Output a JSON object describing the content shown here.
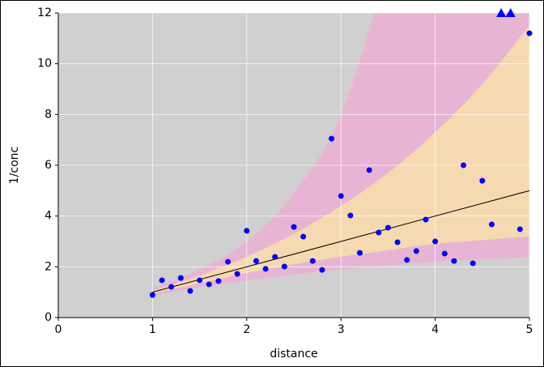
{
  "chart_data": {
    "type": "scatter",
    "x_label": "distance",
    "y_label": "1/conc",
    "xlim": [
      0,
      5
    ],
    "ylim": [
      0,
      12
    ],
    "xticks": [
      0,
      1,
      2,
      3,
      4,
      5
    ],
    "yticks": [
      0,
      2,
      4,
      6,
      8,
      10,
      12
    ],
    "grid": true,
    "background": "#d0d0d0",
    "series": [
      {
        "color": "#0000ff",
        "x": [
          1.0,
          1.1,
          1.2,
          1.3,
          1.4,
          1.5,
          1.6,
          1.7,
          1.8,
          1.9,
          2.0,
          2.1,
          2.2,
          2.3,
          2.4,
          2.5,
          2.6,
          2.7,
          2.8,
          2.9,
          3.0,
          3.1,
          3.2,
          3.3,
          3.4,
          3.5,
          3.6,
          3.7,
          3.8,
          3.9,
          4.0,
          4.1,
          4.2,
          4.3,
          4.4,
          4.5,
          4.6,
          4.9,
          5.0
        ],
        "values": [
          0.89,
          1.47,
          1.21,
          1.56,
          1.05,
          1.47,
          1.31,
          1.44,
          2.2,
          1.72,
          3.42,
          2.23,
          1.92,
          2.39,
          2.01,
          3.57,
          3.19,
          2.23,
          1.88,
          7.05,
          4.79,
          4.02,
          2.55,
          5.81,
          3.35,
          3.54,
          2.97,
          2.27,
          2.62,
          3.86,
          3.0,
          2.52,
          2.23,
          6.0,
          2.14,
          5.39,
          3.67,
          3.48,
          11.2
        ]
      }
    ],
    "clipped": {
      "color": "#0000ff",
      "x": [
        4.7,
        4.8
      ]
    },
    "fit": {
      "color": "#000000",
      "x": [
        1,
        5
      ],
      "values": [
        1,
        5
      ]
    },
    "bands": [
      {
        "color": "#e8b4d4",
        "x": [
          1,
          1.5,
          2,
          2.5,
          3,
          3.5,
          4,
          4.5,
          5
        ],
        "upper": [
          1.15,
          1.9,
          3.0,
          4.9,
          8.0,
          14,
          22,
          35,
          60
        ],
        "lower": [
          0.85,
          1.2,
          1.45,
          1.7,
          1.9,
          2.05,
          2.2,
          2.3,
          2.37
        ]
      },
      {
        "color": "#f5d9b0",
        "x": [
          1,
          1.5,
          2,
          2.5,
          3,
          3.5,
          4,
          4.5,
          5
        ],
        "upper": [
          1.05,
          1.65,
          2.4,
          3.3,
          4.4,
          5.7,
          7.3,
          9.2,
          11.5
        ],
        "lower": [
          0.95,
          1.35,
          1.75,
          2.1,
          2.4,
          2.65,
          2.9,
          3.05,
          3.2
        ]
      }
    ]
  }
}
